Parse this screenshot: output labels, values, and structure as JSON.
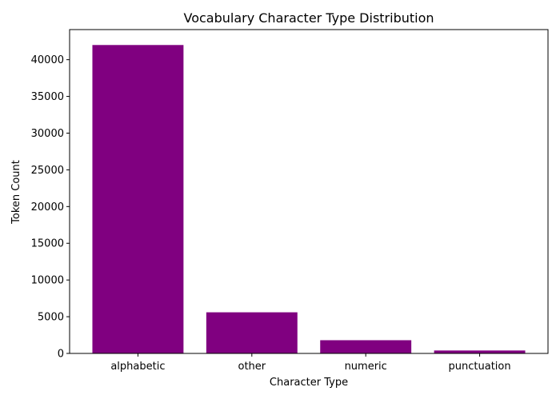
{
  "chart_data": {
    "type": "bar",
    "title": "Vocabulary Character Type Distribution",
    "xlabel": "Character Type",
    "ylabel": "Token Count",
    "categories": [
      "alphabetic",
      "other",
      "numeric",
      "punctuation"
    ],
    "values": [
      42000,
      5600,
      1800,
      400
    ],
    "ylim": [
      0,
      44100
    ],
    "yticks": [
      0,
      5000,
      10000,
      15000,
      20000,
      25000,
      30000,
      35000,
      40000
    ],
    "bar_color": "#800080",
    "grid": false,
    "legend": "none"
  }
}
